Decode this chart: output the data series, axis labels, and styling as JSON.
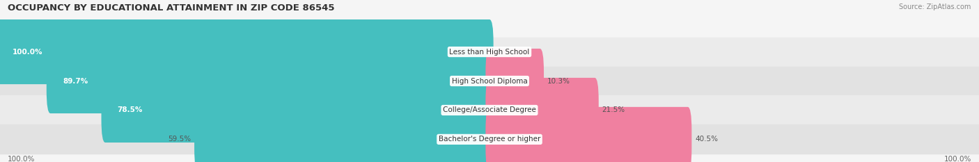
{
  "title": "OCCUPANCY BY EDUCATIONAL ATTAINMENT IN ZIP CODE 86545",
  "source": "Source: ZipAtlas.com",
  "categories": [
    "Less than High School",
    "High School Diploma",
    "College/Associate Degree",
    "Bachelor's Degree or higher"
  ],
  "owner_values": [
    100.0,
    89.7,
    78.5,
    59.5
  ],
  "renter_values": [
    0.0,
    10.3,
    21.5,
    40.5
  ],
  "owner_color": "#45BFBF",
  "renter_color": "#F080A0",
  "row_colors": [
    "#ebebeb",
    "#e2e2e2"
  ],
  "title_fontsize": 9.5,
  "source_fontsize": 7,
  "bar_label_fontsize": 7.5,
  "cat_label_fontsize": 7.5,
  "legend_fontsize": 8,
  "axis_label_fontsize": 7.5,
  "x_left_label": "100.0%",
  "x_right_label": "100.0%",
  "owner_inside_threshold": 70.0
}
